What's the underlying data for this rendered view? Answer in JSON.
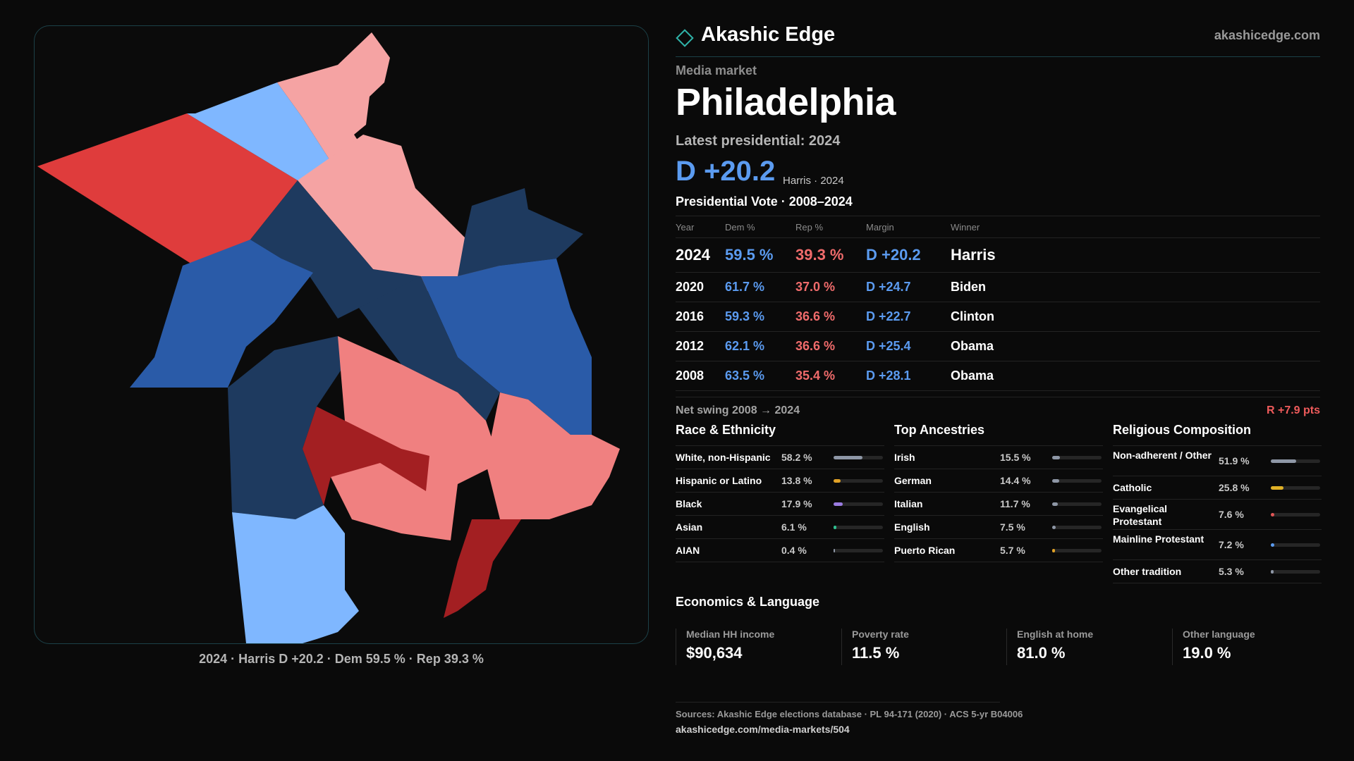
{
  "brand": "Akashic Edge",
  "site": "akashicedge.com",
  "eyebrow": "Media market",
  "title": "Philadelphia",
  "latest_label": "Latest presidential: 2024",
  "headline_margin": "D +20.2",
  "headline_sub": "Harris · 2024",
  "vote_title": "Presidential Vote · 2008–2024",
  "vote_headers": {
    "year": "Year",
    "dem": "Dem %",
    "rep": "Rep %",
    "margin": "Margin",
    "winner": "Winner"
  },
  "votes": [
    {
      "year": "2024",
      "dem": "59.5 %",
      "rep": "39.3 %",
      "margin": "D +20.2",
      "winner": "Harris"
    },
    {
      "year": "2020",
      "dem": "61.7 %",
      "rep": "37.0 %",
      "margin": "D +24.7",
      "winner": "Biden"
    },
    {
      "year": "2016",
      "dem": "59.3 %",
      "rep": "36.6 %",
      "margin": "D +22.7",
      "winner": "Clinton"
    },
    {
      "year": "2012",
      "dem": "62.1 %",
      "rep": "36.6 %",
      "margin": "D +25.4",
      "winner": "Obama"
    },
    {
      "year": "2008",
      "dem": "63.5 %",
      "rep": "35.4 %",
      "margin": "D +28.1",
      "winner": "Obama"
    }
  ],
  "swing": {
    "label": "Net swing 2008 → 2024",
    "value": "R +7.9 pts"
  },
  "race": {
    "title": "Race & Ethnicity",
    "rows": [
      {
        "label": "White, non-Hispanic",
        "pct": "58.2 %",
        "fraction": 0.582,
        "color": "#8e97a6"
      },
      {
        "label": "Hispanic or Latino",
        "pct": "13.8 %",
        "fraction": 0.138,
        "color": "#e0a126"
      },
      {
        "label": "Black",
        "pct": "17.9 %",
        "fraction": 0.179,
        "color": "#9a7be0"
      },
      {
        "label": "Asian",
        "pct": "6.1 %",
        "fraction": 0.061,
        "color": "#2fbf8f"
      },
      {
        "label": "AIAN",
        "pct": "0.4 %",
        "fraction": 0.004,
        "color": "#8e97a6"
      }
    ]
  },
  "ancestry": {
    "title": "Top Ancestries",
    "rows": [
      {
        "label": "Irish",
        "pct": "15.5 %",
        "fraction": 0.155,
        "color": "#8e97a6"
      },
      {
        "label": "German",
        "pct": "14.4 %",
        "fraction": 0.144,
        "color": "#8e97a6"
      },
      {
        "label": "Italian",
        "pct": "11.7 %",
        "fraction": 0.117,
        "color": "#8e97a6"
      },
      {
        "label": "English",
        "pct": "7.5 %",
        "fraction": 0.075,
        "color": "#8e97a6"
      },
      {
        "label": "Puerto Rican",
        "pct": "5.7 %",
        "fraction": 0.057,
        "color": "#e0a126"
      }
    ]
  },
  "religion": {
    "title": "Religious Composition",
    "rows": [
      {
        "label": "Non-adherent / Other",
        "pct": "51.9 %",
        "fraction": 0.519,
        "color": "#8e97a6"
      },
      {
        "label": "Catholic",
        "pct": "25.8 %",
        "fraction": 0.258,
        "color": "#e0b126"
      },
      {
        "label": "Evangelical Protestant",
        "pct": "7.6 %",
        "fraction": 0.076,
        "color": "#e05555"
      },
      {
        "label": "Mainline Protestant",
        "pct": "7.2 %",
        "fraction": 0.072,
        "color": "#5b9bf0"
      },
      {
        "label": "Other tradition",
        "pct": "5.3 %",
        "fraction": 0.053,
        "color": "#8e97a6"
      }
    ]
  },
  "econ_title": "Economics & Language",
  "econ": [
    {
      "label": "Median HH income",
      "value": "$90,634"
    },
    {
      "label": "Poverty rate",
      "value": "11.5 %"
    },
    {
      "label": "English at home",
      "value": "81.0 %"
    },
    {
      "label": "Other language",
      "value": "19.0 %"
    }
  ],
  "map_caption": "2024 · Harris D +20.2 · Dem 59.5 % · Rep 39.3 %",
  "sources": "Sources: Akashic Edge elections database · PL 94-171 (2020) · ACS 5-yr B04006",
  "source_url": "akashicedge.com/media-markets/504",
  "map_colors": {
    "safe_dem": "#1e3a5f",
    "likely_dem": "#2a5ba8",
    "lean_dem": "#7fb7ff",
    "lean_rep": "#f5a3a3",
    "likely_rep": "#f08080",
    "strong_rep": "#df3c3c",
    "safe_rep": "#a31f22"
  }
}
